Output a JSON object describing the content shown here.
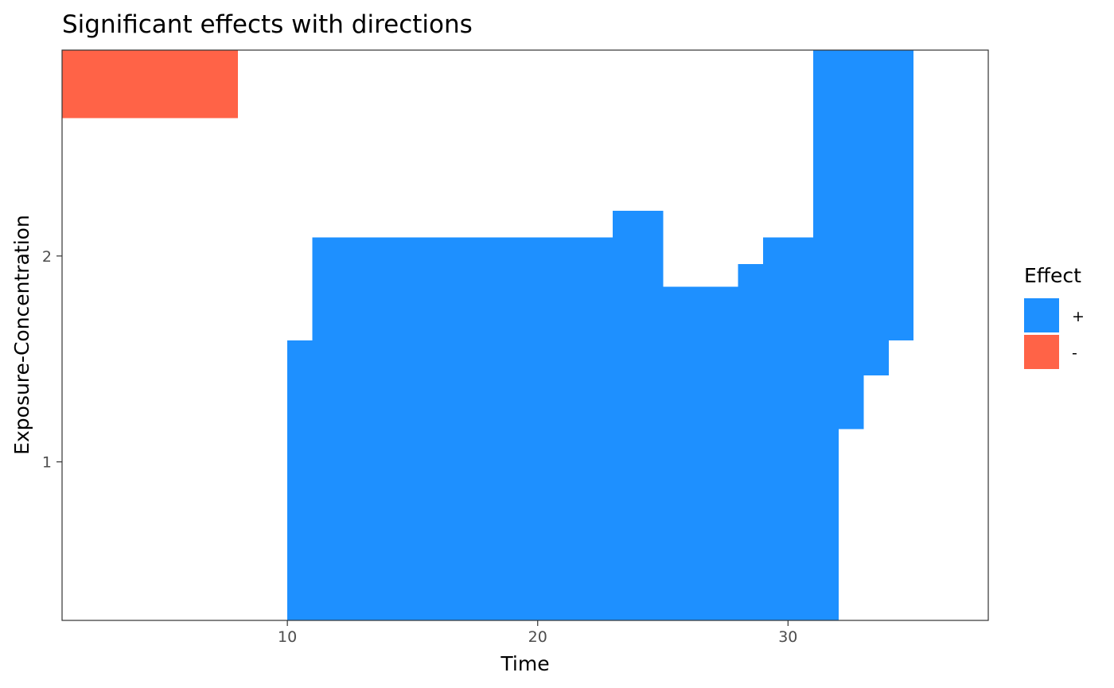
{
  "chart_data": {
    "type": "heatmap",
    "title": "Significant effects with directions",
    "xlabel": "Time",
    "ylabel": "Exposure-Concentration",
    "xlim": [
      1,
      38
    ],
    "ylim": [
      0.23,
      3.0
    ],
    "x_ticks": [
      10,
      20,
      30
    ],
    "y_ticks": [
      1,
      2
    ],
    "grid": false,
    "legend": {
      "title": "Effect",
      "placement": "right",
      "entries": [
        {
          "label": "+",
          "color": "#1e90ff"
        },
        {
          "label": "-",
          "color": "#ff6347"
        }
      ]
    },
    "regions": [
      {
        "effect": "-",
        "color": "#ff6347",
        "x0": 1,
        "x1": 8,
        "y0": 2.67,
        "y1": 3.0
      },
      {
        "effect": "+",
        "color": "#1e90ff",
        "x0": 10,
        "x1": 11,
        "y0": 0.23,
        "y1": 1.59
      },
      {
        "effect": "+",
        "color": "#1e90ff",
        "x0": 11,
        "x1": 23,
        "y0": 0.23,
        "y1": 2.09
      },
      {
        "effect": "+",
        "color": "#1e90ff",
        "x0": 23,
        "x1": 25,
        "y0": 0.23,
        "y1": 2.22
      },
      {
        "effect": "+",
        "color": "#1e90ff",
        "x0": 25,
        "x1": 28,
        "y0": 0.23,
        "y1": 1.85
      },
      {
        "effect": "+",
        "color": "#1e90ff",
        "x0": 28,
        "x1": 29,
        "y0": 0.23,
        "y1": 1.96
      },
      {
        "effect": "+",
        "color": "#1e90ff",
        "x0": 29,
        "x1": 31,
        "y0": 0.23,
        "y1": 2.09
      },
      {
        "effect": "+",
        "color": "#1e90ff",
        "x0": 31,
        "x1": 32,
        "y0": 0.23,
        "y1": 3.0
      },
      {
        "effect": "+",
        "color": "#1e90ff",
        "x0": 32,
        "x1": 33,
        "y0": 1.16,
        "y1": 3.0
      },
      {
        "effect": "+",
        "color": "#1e90ff",
        "x0": 33,
        "x1": 34,
        "y0": 1.42,
        "y1": 3.0
      },
      {
        "effect": "+",
        "color": "#1e90ff",
        "x0": 34,
        "x1": 35,
        "y0": 1.59,
        "y1": 3.0
      }
    ]
  }
}
